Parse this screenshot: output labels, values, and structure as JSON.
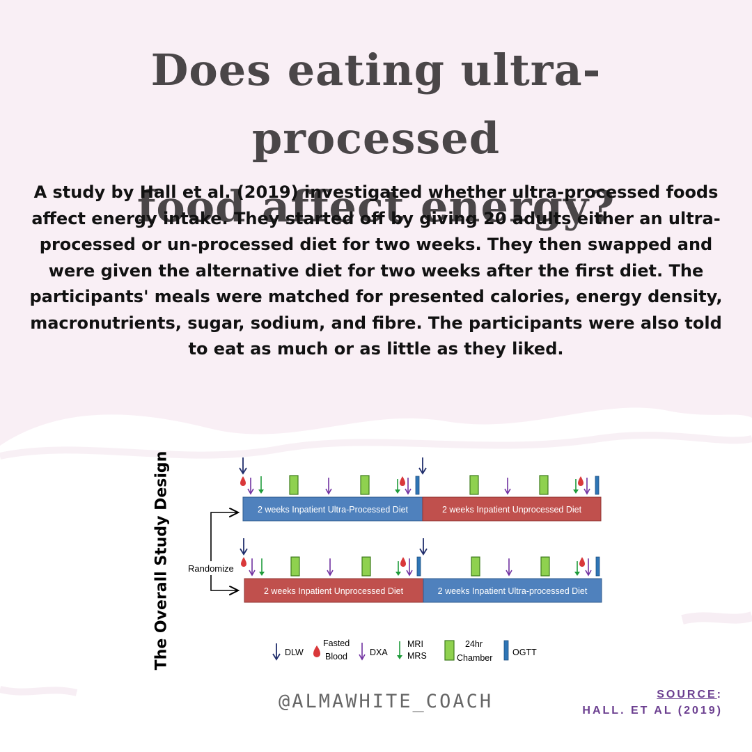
{
  "header": {
    "title_line1": "Does eating ultra-processed",
    "title_line2": "food affect energy?"
  },
  "body": {
    "paragraph": "A study by Hall et al. (2019) investigated whether ultra-processed foods affect energy intake. They started off by giving 20 adults either an ultra-processed or un-processed diet for two weeks. They then swapped and were given the alternative diet for two weeks after the first diet. The participants' meals were matched for presented calories, energy density, macronutrients, sugar, sodium, and fibre. The participants were also told to eat as much or as little as they liked."
  },
  "diagram": {
    "side_label": "The Overall Study Design",
    "randomize_label": "Randomize",
    "arm1": {
      "phase1": "2 weeks Inpatient Ultra-Processed Diet",
      "phase2": "2 weeks Inpatient Unprocessed Diet"
    },
    "arm2": {
      "phase1": "2 weeks Inpatient Unprocessed Diet",
      "phase2": "2 weeks Inpatient Ultra-processed Diet"
    },
    "legend": {
      "dlw": "DLW",
      "fasted": "Fasted",
      "blood": "Blood",
      "dxa": "DXA",
      "mri": "MRI",
      "mrs": "MRS",
      "chamber_1": "24hr",
      "chamber_2": "Chamber",
      "ogtt": "OGTT"
    },
    "colors": {
      "ultra_processed": "#4f81bd",
      "unprocessed": "#c0504d",
      "dlw": "#1f2d6b",
      "blood": "#d9383a",
      "dxa": "#7030a0",
      "mri": "#1e9b3a",
      "chamber": "#8fd14f",
      "ogtt": "#2e75b6"
    }
  },
  "footer": {
    "handle": "@ALMAWHITE_COACH",
    "source_label": "SOURCE",
    "source_colon": ":",
    "source_value": "HALL. ET AL (2019)"
  }
}
